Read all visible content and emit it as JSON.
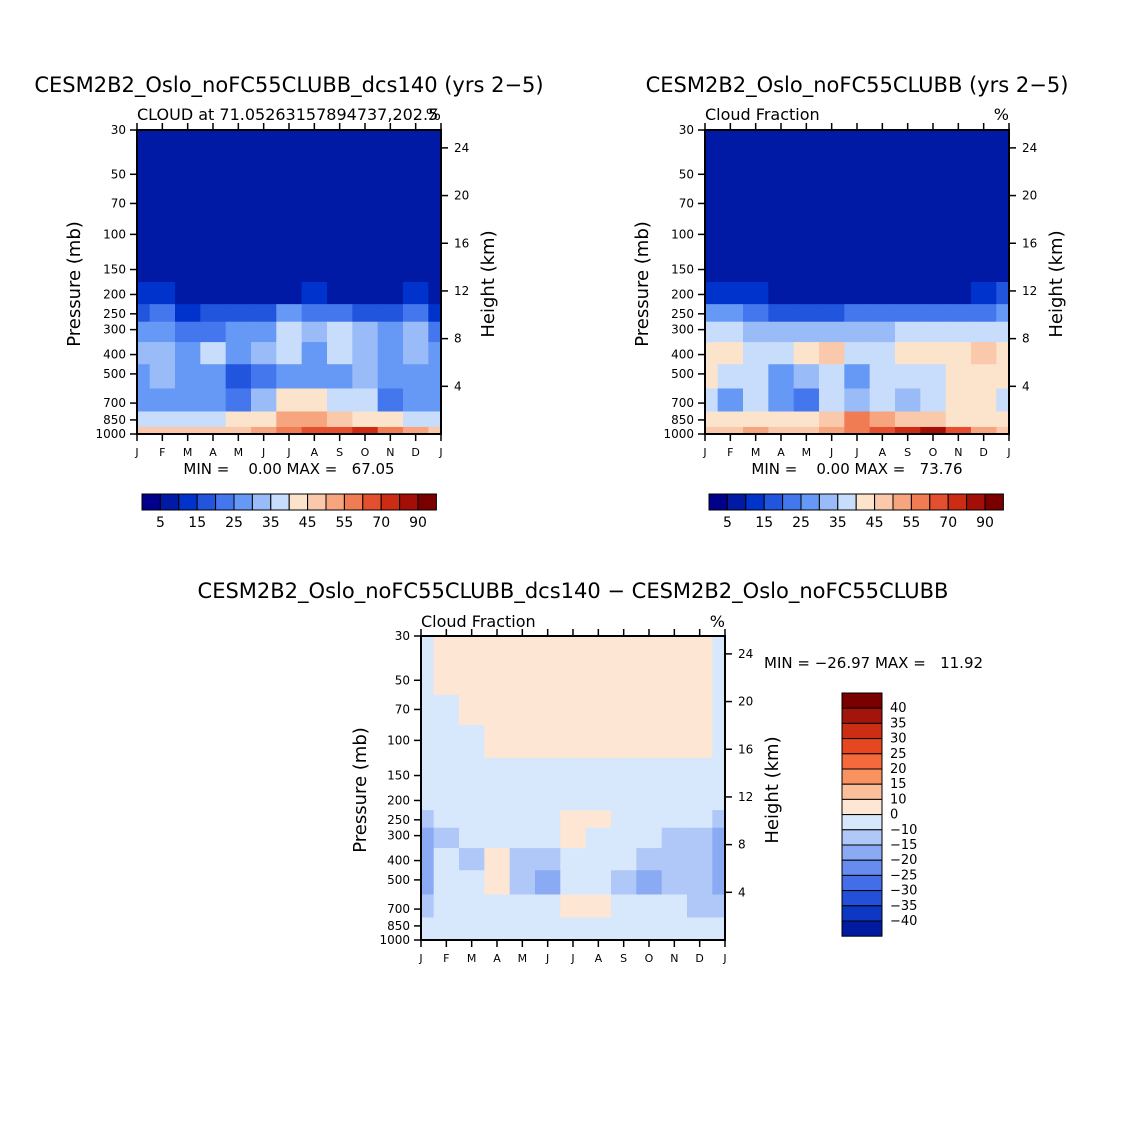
{
  "months": [
    "J",
    "F",
    "M",
    "A",
    "M",
    "J",
    "J",
    "A",
    "S",
    "O",
    "N",
    "D",
    "J"
  ],
  "pressure_levels": [
    30,
    50,
    70,
    100,
    150,
    200,
    250,
    300,
    400,
    500,
    700,
    850,
    1000
  ],
  "height_ticks": [
    4,
    8,
    12,
    16,
    20,
    24
  ],
  "y_label_left": "Pressure (mb)",
  "y_label_right": "Height (km)",
  "palette_main": [
    "#00008b",
    "#001aa6",
    "#0033cc",
    "#2255dd",
    "#4477ee",
    "#6699f5",
    "#99bbf8",
    "#c8dcfb",
    "#fbe3cc",
    "#fac8aa",
    "#f6a57f",
    "#f07c53",
    "#e4502f",
    "#cc2b14",
    "#a30e06",
    "#7a0000"
  ],
  "legend_main_labels": [
    "5",
    "15",
    "25",
    "35",
    "45",
    "55",
    "70",
    "90"
  ],
  "palette_diff": [
    "#7a0000",
    "#a3150a",
    "#cc2e14",
    "#e64720",
    "#f46a3c",
    "#f8935f",
    "#fbbf9c",
    "#fde6d4",
    "#d7e8fc",
    "#b0c8f8",
    "#8aaaf4",
    "#668cf0",
    "#446de8",
    "#2350d8",
    "#0d38c4",
    "#001aa0"
  ],
  "legend_diff_labels": [
    "40",
    "35",
    "30",
    "25",
    "20",
    "15",
    "10",
    "0",
    "−10",
    "−15",
    "−20",
    "−25",
    "−30",
    "−35",
    "−40"
  ],
  "panels": {
    "top_left": {
      "title": "CESM2B2_Oslo_noFC55CLUBB_dcs140 (yrs 2−5)",
      "subtitle_left": "CLOUD at 71.05263157894737,202.5",
      "subtitle_right": "%",
      "minmax": "MIN =    0.00 MAX =   67.05"
    },
    "top_right": {
      "title": "CESM2B2_Oslo_noFC55CLUBB (yrs 2−5)",
      "subtitle_left": "Cloud Fraction",
      "subtitle_right": "%",
      "minmax": "MIN =    0.00 MAX =   73.76"
    },
    "bottom": {
      "title": "CESM2B2_Oslo_noFC55CLUBB_dcs140 − CESM2B2_Oslo_noFC55CLUBB",
      "subtitle_left": "Cloud Fraction",
      "subtitle_right": "%",
      "minmax": "MIN = −26.97 MAX =   11.92"
    }
  },
  "chart_data": [
    {
      "type": "heatmap",
      "title": "CESM2B2_Oslo_noFC55CLUBB_dcs140 (yrs 2−5)",
      "subtitle": "CLOUD at 71.05263157894737,202.5",
      "units": "%",
      "xlabel": "",
      "ylabel": "Pressure (mb)",
      "ylabel_right": "Height (km)",
      "min": 0.0,
      "max": 67.05,
      "x": [
        "J",
        "F",
        "M",
        "A",
        "M",
        "J",
        "J",
        "A",
        "S",
        "O",
        "N",
        "D",
        "J"
      ],
      "y": [
        30,
        50,
        70,
        100,
        150,
        200,
        250,
        300,
        400,
        500,
        700,
        850,
        1000
      ],
      "levels": [
        0,
        5,
        10,
        15,
        20,
        25,
        30,
        35,
        40,
        45,
        50,
        55,
        60,
        70,
        80,
        90
      ],
      "values": [
        [
          0,
          0,
          0,
          0,
          0,
          0,
          0,
          0,
          0,
          0,
          0,
          0,
          0
        ],
        [
          0,
          0,
          0,
          0,
          0,
          0,
          0,
          0,
          0,
          0,
          0,
          0,
          0
        ],
        [
          0,
          0,
          0,
          0,
          0,
          0,
          0,
          0,
          0,
          0,
          0,
          0,
          0
        ],
        [
          0,
          0,
          0,
          0,
          0,
          0,
          0,
          0,
          0,
          0,
          0,
          0,
          0
        ],
        [
          0,
          3,
          0,
          0,
          0,
          0,
          0,
          0,
          0,
          0,
          0,
          0,
          0
        ],
        [
          6,
          9,
          4,
          2,
          3,
          1,
          4,
          6,
          4,
          2,
          4,
          7,
          1
        ],
        [
          14,
          17,
          9,
          11,
          13,
          12,
          21,
          18,
          19,
          14,
          12,
          16,
          8
        ],
        [
          22,
          23,
          18,
          19,
          22,
          24,
          33,
          28,
          34,
          27,
          22,
          25,
          16
        ],
        [
          25,
          26,
          21,
          30,
          21,
          25,
          30,
          23,
          30,
          27,
          22,
          29,
          20
        ],
        [
          20,
          26,
          21,
          23,
          14,
          17,
          23,
          24,
          21,
          25,
          21,
          24,
          21
        ],
        [
          22,
          22,
          24,
          20,
          18,
          27,
          39,
          35,
          30,
          32,
          16,
          21,
          20
        ],
        [
          32,
          33,
          32,
          34,
          35,
          38,
          48,
          49,
          44,
          39,
          35,
          33,
          32
        ],
        [
          41,
          42,
          42,
          43,
          43,
          45,
          51,
          55,
          58,
          64,
          51,
          45,
          41
        ]
      ]
    },
    {
      "type": "heatmap",
      "title": "CESM2B2_Oslo_noFC55CLUBB (yrs 2−5)",
      "subtitle": "Cloud Fraction",
      "units": "%",
      "xlabel": "",
      "ylabel": "Pressure (mb)",
      "ylabel_right": "Height (km)",
      "min": 0.0,
      "max": 73.76,
      "x": [
        "J",
        "F",
        "M",
        "A",
        "M",
        "J",
        "J",
        "A",
        "S",
        "O",
        "N",
        "D",
        "J"
      ],
      "y": [
        30,
        50,
        70,
        100,
        150,
        200,
        250,
        300,
        400,
        500,
        700,
        850,
        1000
      ],
      "levels": [
        0,
        5,
        10,
        15,
        20,
        25,
        30,
        35,
        40,
        45,
        50,
        55,
        60,
        70,
        80,
        90
      ],
      "values": [
        [
          0,
          0,
          0,
          0,
          0,
          0,
          0,
          0,
          0,
          0,
          0,
          0,
          0
        ],
        [
          0,
          0,
          0,
          0,
          0,
          0,
          0,
          0,
          0,
          0,
          0,
          0,
          0
        ],
        [
          0,
          0,
          0,
          0,
          0,
          0,
          0,
          0,
          0,
          0,
          0,
          0,
          0
        ],
        [
          0,
          0,
          0,
          0,
          0,
          0,
          0,
          0,
          0,
          0,
          0,
          0,
          0
        ],
        [
          2,
          1,
          0,
          0,
          0,
          0,
          0,
          0,
          0,
          0,
          0,
          0,
          1
        ],
        [
          9,
          8,
          5,
          4,
          3,
          3,
          3,
          4,
          4,
          3,
          4,
          6,
          10
        ],
        [
          22,
          20,
          15,
          14,
          14,
          13,
          15,
          16,
          17,
          18,
          16,
          18,
          23
        ],
        [
          33,
          31,
          27,
          26,
          25,
          26,
          28,
          28,
          31,
          32,
          31,
          32,
          34
        ],
        [
          37,
          37,
          33,
          32,
          36,
          40,
          31,
          33,
          37,
          37,
          38,
          40,
          38
        ],
        [
          37,
          32,
          30,
          23,
          27,
          33,
          23,
          30,
          33,
          34,
          36,
          37,
          37
        ],
        [
          34,
          24,
          30,
          20,
          18,
          34,
          28,
          30,
          25,
          34,
          37,
          35,
          34
        ],
        [
          38,
          37,
          39,
          36,
          37,
          44,
          50,
          45,
          44,
          42,
          37,
          38,
          38
        ],
        [
          43,
          43,
          45,
          44,
          44,
          47,
          52,
          55,
          64,
          70,
          55,
          47,
          43
        ]
      ]
    },
    {
      "type": "heatmap",
      "title": "CESM2B2_Oslo_noFC55CLUBB_dcs140 − CESM2B2_Oslo_noFC55CLUBB",
      "subtitle": "Cloud Fraction",
      "units": "%",
      "xlabel": "",
      "ylabel": "Pressure (mb)",
      "ylabel_right": "Height (km)",
      "min": -26.97,
      "max": 11.92,
      "x": [
        "J",
        "F",
        "M",
        "A",
        "M",
        "J",
        "J",
        "A",
        "S",
        "O",
        "N",
        "D",
        "J"
      ],
      "y": [
        30,
        50,
        70,
        100,
        150,
        200,
        250,
        300,
        400,
        500,
        700,
        850,
        1000
      ],
      "levels": [
        -40,
        -35,
        -30,
        -25,
        -20,
        -15,
        -10,
        0,
        10,
        15,
        20,
        25,
        30,
        35,
        40
      ],
      "values": [
        [
          -2,
          1,
          1,
          1,
          1,
          1,
          1,
          1,
          1,
          1,
          1,
          1,
          -2
        ],
        [
          -2,
          0.5,
          1,
          1,
          1,
          1,
          1,
          1,
          1,
          1,
          1,
          1,
          -2
        ],
        [
          -2,
          -0.5,
          0.5,
          1,
          1,
          1,
          1,
          1,
          1,
          1,
          1,
          1,
          -2
        ],
        [
          -2,
          -1,
          -1,
          0.5,
          1,
          1,
          1,
          1,
          1,
          1,
          1,
          0.5,
          -2
        ],
        [
          -2,
          -2,
          -1,
          -1,
          -1,
          -1,
          -1,
          -1,
          -1,
          -1,
          -1,
          -1,
          -2
        ],
        [
          -7,
          -3,
          -2,
          -2,
          -2,
          -3,
          -1,
          -1,
          -3,
          -2,
          -2,
          -3,
          -7
        ],
        [
          -14,
          -8,
          -6,
          -5,
          -4,
          -6,
          0.5,
          0.5,
          -4,
          -7,
          -8,
          -9,
          -14
        ],
        [
          -17,
          -11,
          -9,
          -8,
          -4,
          -6,
          0.5,
          -3,
          -4,
          -9,
          -13,
          -12,
          -17
        ],
        [
          -17,
          -10,
          -12,
          0.5,
          -11,
          -15,
          -2,
          -10,
          -8,
          -13,
          -15,
          -12,
          -17
        ],
        [
          -17,
          -8,
          -9,
          0.5,
          -13,
          -16,
          -1,
          -6,
          -12,
          -20,
          -15,
          -13,
          -17
        ],
        [
          -14,
          -5,
          -6,
          -2,
          -3,
          -7,
          0.5,
          0.5,
          -2,
          -4,
          -9,
          -11,
          -14
        ],
        [
          -7,
          -4,
          -4,
          -2,
          -3,
          -3,
          -2,
          -1,
          -3,
          -2,
          -4,
          -6,
          -7
        ],
        [
          -2,
          -1,
          -2,
          -1,
          -1,
          -1,
          -1,
          -1,
          -1,
          -1,
          -1,
          -1,
          -2
        ]
      ]
    }
  ]
}
